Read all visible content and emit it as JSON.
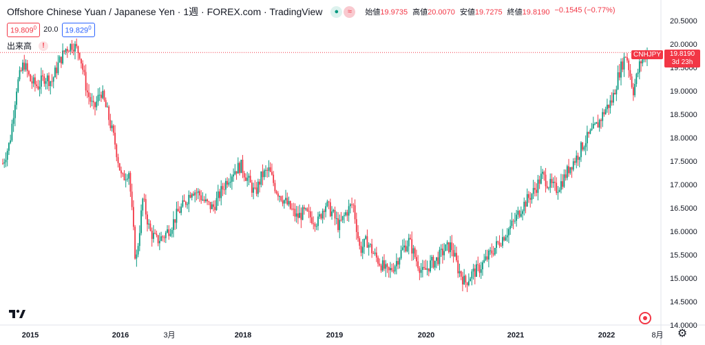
{
  "header": {
    "title": "Offshore Chinese Yuan / Japanese Yen · 1週 · FOREX.com · TradingView",
    "icon_left": "circle-dot-icon",
    "icon_right": "wave-icon",
    "ohlc": {
      "open_label": "始値",
      "open": "19.9735",
      "high_label": "高値",
      "high": "20.0070",
      "low_label": "安値",
      "low": "19.7275",
      "close_label": "終値",
      "close": "19.8190",
      "change": "−0.1545 (−0.77%)"
    }
  },
  "quote": {
    "bid": "19.809",
    "bid_sup": "0",
    "spread": "20.0",
    "ask": "19.829",
    "ask_sup": "0"
  },
  "volume": {
    "label": "出来高",
    "warning": "!"
  },
  "price_axis": {
    "ticks": [
      "20.5000",
      "20.0000",
      "19.5000",
      "19.0000",
      "18.5000",
      "18.0000",
      "17.5000",
      "17.0000",
      "16.5000",
      "16.0000",
      "15.5000",
      "15.0000",
      "14.5000",
      "14.0000"
    ],
    "last_price": "19.8190",
    "countdown": "3d 23h",
    "symbol": "CNHJPY"
  },
  "time_axis": [
    {
      "label": "2015",
      "bold": true
    },
    {
      "label": "2016",
      "bold": true
    },
    {
      "label": "3月",
      "bold": false
    },
    {
      "label": "2018",
      "bold": true
    },
    {
      "label": "2019",
      "bold": true
    },
    {
      "label": "2020",
      "bold": true
    },
    {
      "label": "2021",
      "bold": true
    },
    {
      "label": "2022",
      "bold": true
    },
    {
      "label": "8月",
      "bold": false
    }
  ],
  "chart_data": {
    "type": "candlestick",
    "symbol": "CNHJPY",
    "interval": "1週",
    "ylim": [
      14.0,
      20.5
    ],
    "up_color": "#089981",
    "down_color": "#f23645",
    "series": [
      {
        "date": "2014-09",
        "close": 17.45
      },
      {
        "date": "2014-10",
        "close": 17.9
      },
      {
        "date": "2014-11",
        "close": 19.1
      },
      {
        "date": "2014-12",
        "close": 19.6
      },
      {
        "date": "2015-01",
        "close": 19.2
      },
      {
        "date": "2015-02",
        "close": 19.1
      },
      {
        "date": "2015-03",
        "close": 19.3
      },
      {
        "date": "2015-04",
        "close": 19.2
      },
      {
        "date": "2015-05",
        "close": 19.6
      },
      {
        "date": "2015-06",
        "close": 19.9
      },
      {
        "date": "2015-07",
        "close": 20.0
      },
      {
        "date": "2015-08",
        "close": 19.8
      },
      {
        "date": "2015-09",
        "close": 19.0
      },
      {
        "date": "2015-10",
        "close": 18.6
      },
      {
        "date": "2015-11",
        "close": 19.0
      },
      {
        "date": "2015-12",
        "close": 18.5
      },
      {
        "date": "2016-01",
        "close": 17.9
      },
      {
        "date": "2016-02",
        "close": 17.1
      },
      {
        "date": "2016-03",
        "close": 17.3
      },
      {
        "date": "2016-04",
        "close": 15.3
      },
      {
        "date": "2016-05",
        "close": 16.7
      },
      {
        "date": "2016-06",
        "close": 16.0
      },
      {
        "date": "2016-07",
        "close": 15.8
      },
      {
        "date": "2016-08",
        "close": 15.9
      },
      {
        "date": "2016-09",
        "close": 16.1
      },
      {
        "date": "2016-10",
        "close": 16.4
      },
      {
        "date": "2016-11",
        "close": 16.6
      },
      {
        "date": "2016-12",
        "close": 16.9
      },
      {
        "date": "2017-01",
        "close": 16.8
      },
      {
        "date": "2017-02",
        "close": 16.6
      },
      {
        "date": "2017-03",
        "close": 16.5
      },
      {
        "date": "2017-04",
        "close": 16.8
      },
      {
        "date": "2017-05",
        "close": 17.1
      },
      {
        "date": "2017-06",
        "close": 17.3
      },
      {
        "date": "2017-07",
        "close": 17.4
      },
      {
        "date": "2017-08",
        "close": 17.1
      },
      {
        "date": "2017-09",
        "close": 16.8
      },
      {
        "date": "2017-10",
        "close": 17.2
      },
      {
        "date": "2017-11",
        "close": 17.3
      },
      {
        "date": "2017-12",
        "close": 16.9
      },
      {
        "date": "2018-01",
        "close": 16.7
      },
      {
        "date": "2018-02",
        "close": 16.5
      },
      {
        "date": "2018-03",
        "close": 16.3
      },
      {
        "date": "2018-04",
        "close": 16.4
      },
      {
        "date": "2018-05",
        "close": 16.3
      },
      {
        "date": "2018-06",
        "close": 16.2
      },
      {
        "date": "2018-07",
        "close": 16.6
      },
      {
        "date": "2018-08",
        "close": 16.4
      },
      {
        "date": "2018-09",
        "close": 16.1
      },
      {
        "date": "2018-10",
        "close": 16.4
      },
      {
        "date": "2018-11",
        "close": 16.6
      },
      {
        "date": "2018-12",
        "close": 15.6
      },
      {
        "date": "2019-01",
        "close": 15.8
      },
      {
        "date": "2019-02",
        "close": 15.5
      },
      {
        "date": "2019-03",
        "close": 15.3
      },
      {
        "date": "2019-04",
        "close": 15.1
      },
      {
        "date": "2019-05",
        "close": 15.3
      },
      {
        "date": "2019-06",
        "close": 15.6
      },
      {
        "date": "2019-07",
        "close": 15.8
      },
      {
        "date": "2019-08",
        "close": 15.4
      },
      {
        "date": "2019-09",
        "close": 15.1
      },
      {
        "date": "2019-10",
        "close": 15.3
      },
      {
        "date": "2019-11",
        "close": 15.4
      },
      {
        "date": "2019-12",
        "close": 15.6
      },
      {
        "date": "2020-01",
        "close": 15.7
      },
      {
        "date": "2020-02",
        "close": 15.2
      },
      {
        "date": "2020-03",
        "close": 14.9
      },
      {
        "date": "2020-04",
        "close": 15.1
      },
      {
        "date": "2020-05",
        "close": 15.2
      },
      {
        "date": "2020-06",
        "close": 15.4
      },
      {
        "date": "2020-07",
        "close": 15.6
      },
      {
        "date": "2020-08",
        "close": 15.8
      },
      {
        "date": "2020-09",
        "close": 16.0
      },
      {
        "date": "2020-10",
        "close": 16.2
      },
      {
        "date": "2020-11",
        "close": 16.5
      },
      {
        "date": "2020-12",
        "close": 16.7
      },
      {
        "date": "2021-01",
        "close": 16.9
      },
      {
        "date": "2021-02",
        "close": 17.2
      },
      {
        "date": "2021-03",
        "close": 17.0
      },
      {
        "date": "2021-04",
        "close": 16.9
      },
      {
        "date": "2021-05",
        "close": 17.1
      },
      {
        "date": "2021-06",
        "close": 17.4
      },
      {
        "date": "2021-07",
        "close": 17.6
      },
      {
        "date": "2021-08",
        "close": 17.9
      },
      {
        "date": "2021-09",
        "close": 18.1
      },
      {
        "date": "2021-10",
        "close": 18.3
      },
      {
        "date": "2021-11",
        "close": 18.6
      },
      {
        "date": "2021-12",
        "close": 18.8
      },
      {
        "date": "2022-01",
        "close": 19.4
      },
      {
        "date": "2022-02",
        "close": 19.8
      },
      {
        "date": "2022-03",
        "close": 19.0
      },
      {
        "date": "2022-04",
        "close": 19.6
      },
      {
        "date": "2022-05",
        "close": 19.82
      }
    ]
  }
}
